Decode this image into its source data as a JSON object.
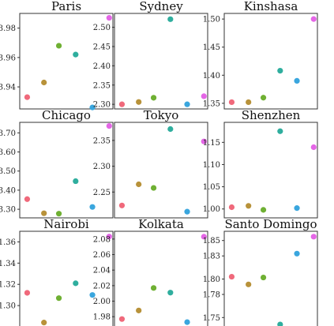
{
  "chart_data": [
    {
      "type": "scatter",
      "title": "Paris",
      "ylim": [
        3.925,
        3.99
      ],
      "yticks": [
        3.94,
        3.96,
        3.98
      ],
      "ytick_labels": [
        "3.94",
        "3.96",
        "3.98"
      ],
      "values": [
        3.933,
        3.943,
        3.968,
        3.962,
        3.926,
        3.987
      ]
    },
    {
      "type": "scatter",
      "title": "Sydney",
      "ylim": [
        2.288,
        2.536
      ],
      "yticks": [
        2.3,
        2.35,
        2.4,
        2.45,
        2.5
      ],
      "ytick_labels": [
        "2.30",
        "2.35",
        "2.40",
        "2.45",
        "2.50"
      ],
      "values": [
        2.3,
        2.306,
        2.317,
        2.521,
        2.3,
        2.321
      ]
    },
    {
      "type": "scatter",
      "title": "Kinshasa",
      "ylim": [
        1.34,
        1.51
      ],
      "yticks": [
        1.35,
        1.4,
        1.45,
        1.5
      ],
      "ytick_labels": [
        "1.35",
        "1.40",
        "1.45",
        "1.50"
      ],
      "values": [
        1.352,
        1.352,
        1.36,
        1.408,
        1.39,
        1.5
      ]
    },
    {
      "type": "scatter",
      "title": "Chicago",
      "ylim": [
        3.255,
        3.755
      ],
      "yticks": [
        3.3,
        3.4,
        3.5,
        3.6,
        3.7
      ],
      "ytick_labels": [
        "3.30",
        "3.40",
        "3.50",
        "3.60",
        "3.70"
      ],
      "values": [
        3.353,
        3.279,
        3.277,
        3.447,
        3.312,
        3.736
      ]
    },
    {
      "type": "scatter",
      "title": "Tokyo",
      "ylim": [
        2.2,
        2.385
      ],
      "yticks": [
        2.25,
        2.3,
        2.35
      ],
      "ytick_labels": [
        "2.25",
        "2.30",
        "2.35"
      ],
      "values": [
        2.224,
        2.265,
        2.258,
        2.372,
        2.212,
        2.348
      ]
    },
    {
      "type": "scatter",
      "title": "Shenzhen",
      "ylim": [
        0.98,
        1.195
      ],
      "yticks": [
        1.0,
        1.05,
        1.1,
        1.15
      ],
      "ytick_labels": [
        "1.00",
        "1.05",
        "1.10",
        "1.15"
      ],
      "values": [
        1.004,
        1.007,
        0.998,
        1.175,
        1.002,
        1.139
      ]
    },
    {
      "type": "scatter",
      "title": "Nairobi",
      "ylim": [
        1.28,
        1.37
      ],
      "yticks": [
        1.3,
        1.32,
        1.34,
        1.36
      ],
      "ytick_labels": [
        "1.30",
        "1.32",
        "1.34",
        "1.36"
      ],
      "values": [
        1.312,
        1.284,
        1.307,
        1.321,
        1.31,
        1.365
      ]
    },
    {
      "type": "scatter",
      "title": "Kolkata",
      "ylim": [
        1.967,
        2.09
      ],
      "yticks": [
        1.98,
        2.0,
        2.02,
        2.04,
        2.06,
        2.08
      ],
      "ytick_labels": [
        "1.98",
        "2.00",
        "2.02",
        "2.04",
        "2.06",
        "2.08"
      ],
      "values": [
        1.977,
        1.988,
        2.017,
        2.011,
        1.973,
        2.083
      ]
    },
    {
      "type": "scatter",
      "title": "Santo Domingo",
      "ylim": [
        1.738,
        1.862
      ],
      "yticks": [
        1.75,
        1.78,
        1.8,
        1.83,
        1.85
      ],
      "ytick_labels": [
        "1.75",
        "1.78",
        "1.80",
        "1.83",
        "1.85"
      ],
      "values": [
        1.803,
        1.793,
        1.802,
        1.741,
        1.833,
        1.855
      ]
    }
  ],
  "colors": [
    "#f0697b",
    "#b8923a",
    "#6fb033",
    "#2fae9e",
    "#3aa6de",
    "#e466e6"
  ]
}
